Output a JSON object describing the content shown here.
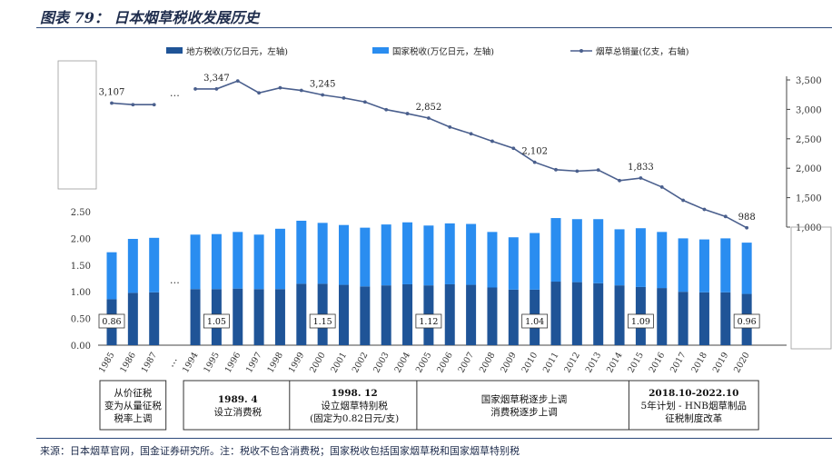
{
  "title": "图表 79： 日本烟草税收发展历史",
  "source": "来源：日本烟草官网，国金证券研究所。注：税收不包含消费税；国家税收包括国家烟草税和国家烟草特别税",
  "colors": {
    "local": "#1f5497",
    "national": "#2a8df0",
    "line": "#4a5f8d"
  },
  "chart_data": {
    "type": "bar",
    "categories": [
      "1985",
      "1986",
      "1987",
      "1994",
      "1995",
      "1996",
      "1997",
      "1998",
      "1999",
      "2000",
      "2001",
      "2002",
      "2003",
      "2004",
      "2005",
      "2006",
      "2007",
      "2008",
      "2009",
      "2010",
      "2011",
      "2012",
      "2013",
      "2014",
      "2015",
      "2016",
      "2017",
      "2018",
      "2019",
      "2020"
    ],
    "gap_marker": "…",
    "legend": [
      {
        "name": "地方税收(万亿日元，左轴)",
        "type": "bar"
      },
      {
        "name": "国家税收(万亿日元，左轴)",
        "type": "bar"
      },
      {
        "name": "烟草总销量(亿支，右轴)",
        "type": "line"
      }
    ],
    "series": [
      {
        "name": "地方税收(万亿日元，左轴)",
        "axis": "left",
        "values": [
          0.86,
          0.98,
          0.99,
          1.05,
          1.05,
          1.06,
          1.05,
          1.05,
          1.15,
          1.15,
          1.13,
          1.1,
          1.12,
          1.14,
          1.12,
          1.14,
          1.13,
          1.08,
          1.04,
          1.04,
          1.19,
          1.18,
          1.16,
          1.12,
          1.09,
          1.07,
          1.0,
          0.99,
          0.99,
          0.96
        ]
      },
      {
        "name": "国家税收(万亿日元，左轴)",
        "axis": "left",
        "values": [
          0.88,
          1.01,
          1.02,
          1.02,
          1.03,
          1.06,
          1.02,
          1.13,
          1.18,
          1.14,
          1.12,
          1.1,
          1.14,
          1.16,
          1.12,
          1.14,
          1.14,
          1.04,
          0.98,
          1.06,
          1.19,
          1.18,
          1.2,
          1.05,
          1.1,
          1.05,
          1.0,
          0.99,
          1.01,
          0.96
        ]
      },
      {
        "name": "烟草总销量(亿支，右轴)",
        "axis": "right",
        "values": [
          3107,
          3080,
          3080,
          3347,
          3347,
          3483,
          3280,
          3366,
          3322,
          3245,
          3193,
          3126,
          2995,
          2928,
          2852,
          2700,
          2585,
          2459,
          2339,
          2102,
          1975,
          1951,
          1970,
          1790,
          1833,
          1680,
          1455,
          1300,
          1180,
          988
        ]
      }
    ],
    "bar_labels": [
      {
        "index": 0,
        "text": "0.86"
      },
      {
        "index": 4,
        "text": "1.05"
      },
      {
        "index": 9,
        "text": "1.15"
      },
      {
        "index": 14,
        "text": "1.12"
      },
      {
        "index": 19,
        "text": "1.04"
      },
      {
        "index": 24,
        "text": "1.09"
      },
      {
        "index": 29,
        "text": "0.96"
      }
    ],
    "line_labels": [
      {
        "index": 0,
        "text": "3,107"
      },
      {
        "index": 4,
        "text": "3,347"
      },
      {
        "index": 9,
        "text": "3,245"
      },
      {
        "index": 14,
        "text": "2,852"
      },
      {
        "index": 19,
        "text": "2,102"
      },
      {
        "index": 24,
        "text": "1,833"
      },
      {
        "index": 29,
        "text": "988"
      }
    ],
    "left_axis": {
      "ticks": [
        "0.00",
        "0.50",
        "1.00",
        "1.50",
        "2.00",
        "2.50"
      ],
      "ylim": [
        0,
        2.5
      ]
    },
    "right_axis": {
      "ticks": [
        "1,000",
        "1,500",
        "2,000",
        "2,500",
        "3,000",
        "3,500"
      ],
      "ylim": [
        1000,
        3500
      ]
    },
    "annotations": [
      {
        "from": 0,
        "to": 2,
        "lines": [
          "从价征税",
          "变为从量征税",
          "税率上调"
        ]
      },
      {
        "from": 3,
        "to": 7,
        "lines": [
          "1989. 4",
          "设立消费税"
        ]
      },
      {
        "from": 8,
        "to": 13,
        "lines": [
          "1998. 12",
          "设立烟草特别税",
          "(固定为0.82日元/支)"
        ]
      },
      {
        "from": 14,
        "to": 23,
        "lines": [
          "国家烟草税逐步上调",
          "消费税逐步上调"
        ]
      },
      {
        "from": 24,
        "to": 29,
        "lines": [
          "2018.10-2022.10",
          "5年计划 - HNB烟草制品",
          "征税制度改革"
        ]
      }
    ]
  }
}
